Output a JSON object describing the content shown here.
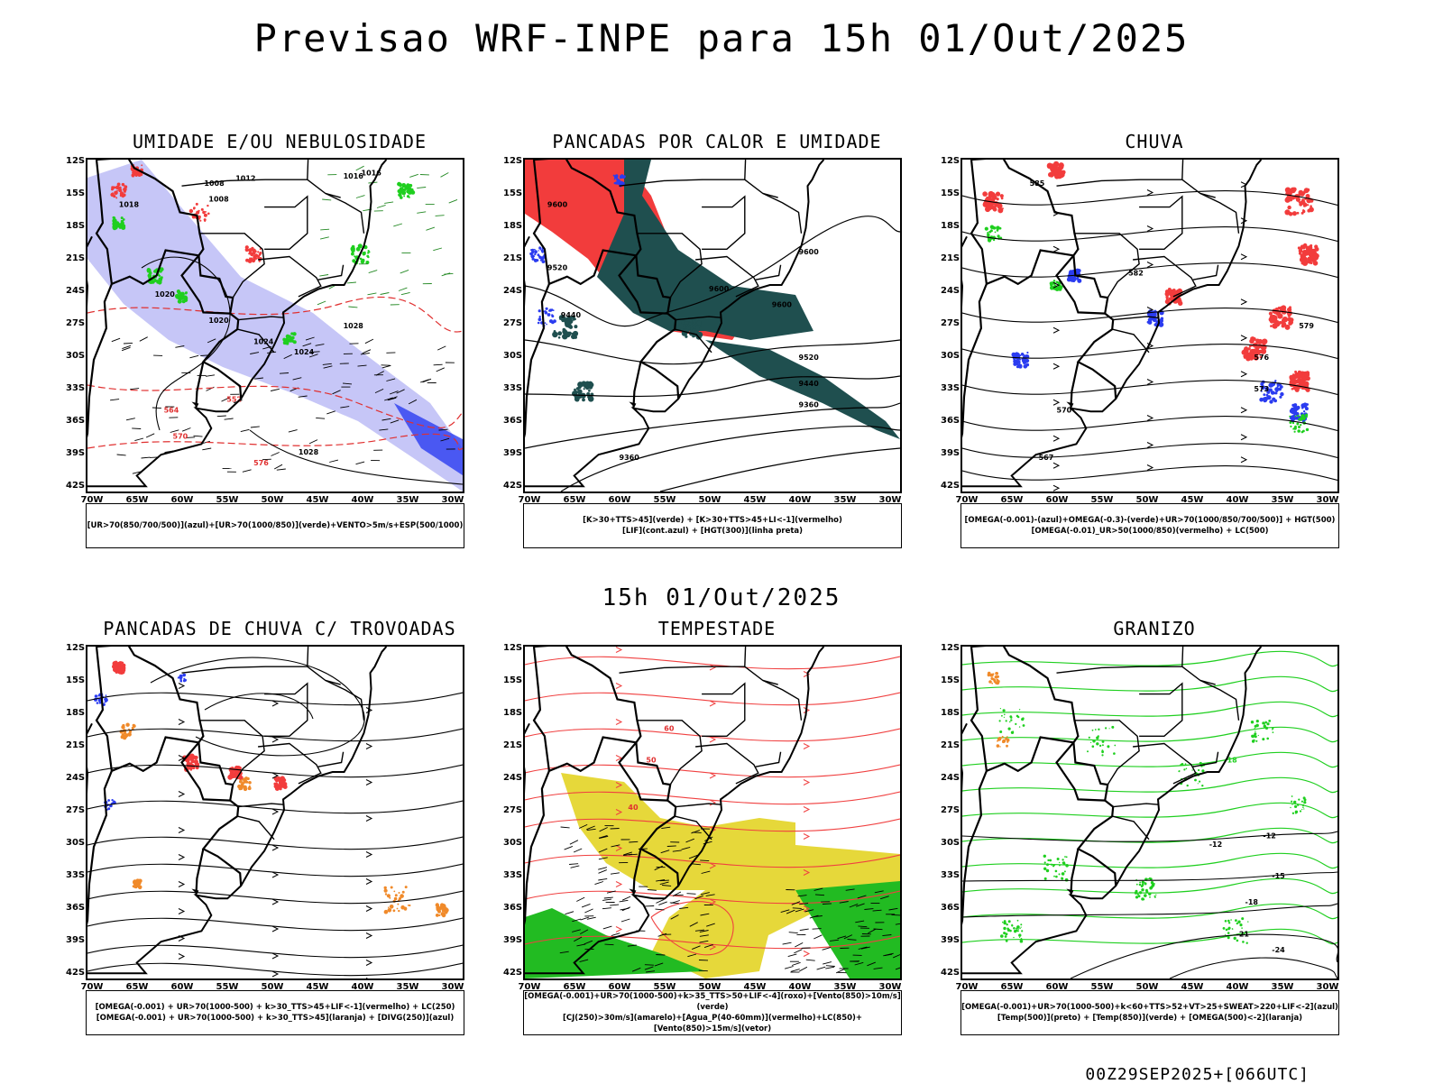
{
  "header": {
    "title": "Previsao WRF-INPE  para 15h 01/Out/2025"
  },
  "mid_title": "15h 01/Out/2025",
  "footer": "00Z29SEP2025+[066UTC]",
  "axes": {
    "lat_labels": [
      "12S",
      "15S",
      "18S",
      "21S",
      "24S",
      "27S",
      "30S",
      "33S",
      "36S",
      "39S",
      "42S"
    ],
    "lon_labels": [
      "70W",
      "65W",
      "60W",
      "55W",
      "50W",
      "45W",
      "40W",
      "35W",
      "30W"
    ]
  },
  "colors": {
    "red": "#f23c3c",
    "green": "#1fcf1f",
    "blue": "#2b3cf0",
    "lavender": "#b8b8f5",
    "teal": "#1f4f4f",
    "yellow": "#e6d83a",
    "orange": "#f08a2a"
  },
  "panels": [
    {
      "title": "UMIDADE E/OU NEBULOSIDADE",
      "legend": [
        "[UR>70(850/700/500)](azul)+[UR>70(1000/850)](verde)+VENTO>5m/s+ESP(500/1000)"
      ],
      "contour_labels": [
        "1008",
        "1008",
        "1012",
        "1016",
        "1016",
        "1018",
        "1020",
        "1020",
        "1024",
        "1024",
        "1028",
        "1028",
        "552",
        "564",
        "570",
        "576"
      ]
    },
    {
      "title": "PANCADAS POR CALOR E UMIDADE",
      "legend": [
        "[K>30+TTS>45](verde) + [K>30+TTS>45+LI<-1](vermelho)",
        "[LIF](cont.azul) + [HGT(300)](linha preta)"
      ],
      "contour_labels": [
        "9600",
        "9520",
        "9440",
        "9600",
        "9600",
        "9600",
        "9520",
        "9440",
        "9360",
        "9360"
      ]
    },
    {
      "title": "CHUVA",
      "legend": [
        "[OMEGA(-0.001)-(azul)+OMEGA(-0.3)-(verde)+UR>70(1000/850/700/500)] + HGT(500)",
        "[OMEGA(-0.01)_UR>50(1000/850)(vermelho) + LC(500)"
      ],
      "contour_labels": [
        "585",
        "582",
        "579",
        "576",
        "573",
        "570",
        "567"
      ]
    },
    {
      "title": "PANCADAS DE CHUVA C/ TROVOADAS",
      "legend": [
        "[OMEGA(-0.001) + UR>70(1000-500) + k>30_TTS>45+LIF<-1](vermelho) + LC(250)",
        "[OMEGA(-0.001) + UR>70(1000-500) + k>30_TTS>45](laranja) + [DIVG(250)](azul)"
      ],
      "contour_labels": []
    },
    {
      "title": "TEMPESTADE",
      "legend": [
        "[OMEGA(-0.001)+UR>70(1000-500)+k>35_TTS>50+LIF<-4](roxo)+[Vento(850)>10m/s](verde)",
        "[CJ(250)>30m/s](amarelo)+[Agua_P(40-60mm)](vermelho)+LC(850)+[Vento(850)>15m/s](vetor)"
      ],
      "contour_labels": [
        "40",
        "50",
        "60"
      ]
    },
    {
      "title": "GRANIZO",
      "legend": [
        "[OMEGA(-0.001)+UR>70(1000-500)+k<60+TTS>52+VT>25+SWEAT>220+LIF<-2](azul)",
        "[Temp(500)](preto) + [Temp(850)](verde) + [OMEGA(500)<-2](laranja)"
      ],
      "contour_labels": [
        "-12",
        "-12",
        "-15",
        "-18",
        "-21",
        "-24",
        "18"
      ]
    }
  ]
}
